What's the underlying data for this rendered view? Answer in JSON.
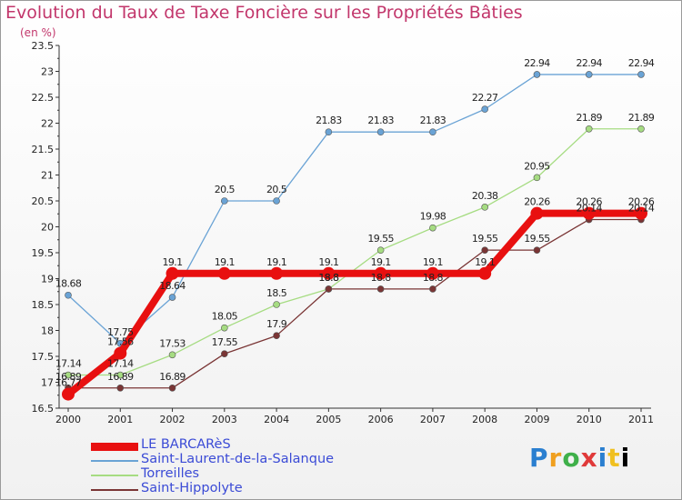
{
  "chart_data": {
    "type": "line",
    "title": "Evolution du Taux de Taxe Foncière sur les Propriétés Bâties",
    "unit_label": "(en %)",
    "xlabel": "",
    "ylabel": "",
    "x": [
      "2000",
      "2001",
      "2002",
      "2003",
      "2004",
      "2005",
      "2006",
      "2007",
      "2008",
      "2009",
      "2010",
      "2011"
    ],
    "ylim": [
      16.5,
      23.5
    ],
    "yticks": [
      "16.5",
      "17",
      "17.5",
      "18",
      "18.5",
      "19",
      "19.5",
      "20",
      "20.5",
      "21",
      "21.5",
      "22",
      "22.5",
      "23",
      "23.5"
    ],
    "grid": false,
    "legend_position": "bottom-left",
    "series": [
      {
        "name": "LE BARCARèS",
        "color": "#e81010",
        "values": [
          16.77,
          17.56,
          19.1,
          19.1,
          19.1,
          19.1,
          19.1,
          19.1,
          19.1,
          20.26,
          20.26,
          20.26
        ],
        "labels": [
          "16.77",
          "17.56",
          "19.1",
          "19.1",
          "19.1",
          "19.1",
          "19.1",
          "19.1",
          "19.1",
          "20.26",
          "20.26",
          "20.26"
        ]
      },
      {
        "name": "Saint-Laurent-de-la-Salanque",
        "color": "#6aa3d5",
        "values": [
          18.68,
          17.75,
          18.64,
          20.5,
          20.5,
          21.83,
          21.83,
          21.83,
          22.27,
          22.94,
          22.94,
          22.94
        ],
        "labels": [
          "18.68",
          "17.75",
          "18.64",
          "20.5",
          "20.5",
          "21.83",
          "21.83",
          "21.83",
          "22.27",
          "22.94",
          "22.94",
          "22.94"
        ]
      },
      {
        "name": "Torreilles",
        "color": "#a6dc82",
        "values": [
          17.14,
          17.14,
          17.53,
          18.05,
          18.5,
          18.8,
          19.55,
          19.98,
          20.38,
          20.95,
          21.89,
          21.89
        ],
        "labels": [
          "17.14",
          "17.14",
          "17.53",
          "18.05",
          "18.5",
          "18.8",
          "19.55",
          "19.98",
          "20.38",
          "20.95",
          "21.89",
          "21.89"
        ]
      },
      {
        "name": "Saint-Hippolyte",
        "color": "#7a3535",
        "values": [
          16.89,
          16.89,
          16.89,
          17.55,
          17.9,
          18.8,
          18.8,
          18.8,
          19.55,
          19.55,
          20.14,
          20.14
        ],
        "labels": [
          "16.89",
          "16.89",
          "16.89",
          "17.55",
          "17.9",
          "18.8",
          "18.8",
          "18.8",
          "19.55",
          "19.55",
          "20.14",
          "20.14"
        ]
      }
    ]
  },
  "branding": {
    "logo_letters": [
      "P",
      "r",
      "o",
      "x",
      "i",
      "t",
      "i"
    ]
  }
}
